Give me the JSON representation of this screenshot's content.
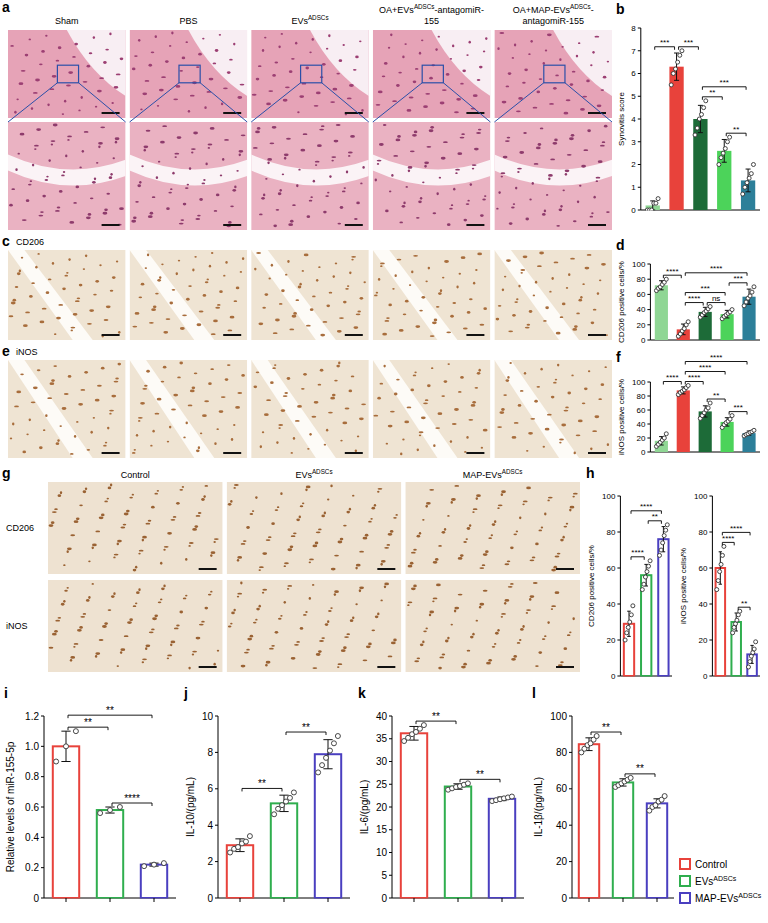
{
  "images": {
    "a": {
      "letter": "a",
      "columns": [
        [
          {
            "text": "Sham"
          }
        ],
        [
          {
            "text": "PBS"
          }
        ],
        [
          {
            "text": "EVs"
          },
          {
            "sup": "ADSCs"
          }
        ],
        [
          {
            "text": "OA+EVs"
          },
          {
            "sup": "ADSCs"
          },
          {
            "text": "-antagomiR-155"
          }
        ],
        [
          {
            "text": "OA+MAP-EVs"
          },
          {
            "sup": "ADSCs"
          },
          {
            "text": "-antagomiR-155"
          }
        ]
      ]
    },
    "c": {
      "letter": "c",
      "title": "CD206"
    },
    "e": {
      "letter": "e",
      "title": "iNOS"
    },
    "g": {
      "letter": "g",
      "columns": [
        [
          {
            "text": "Control"
          }
        ],
        [
          {
            "text": "EVs"
          },
          {
            "sup": "ADSCs"
          }
        ],
        [
          {
            "text": "MAP-EVs"
          },
          {
            "sup": "ADSCs"
          }
        ]
      ],
      "rows": [
        "CD206",
        "iNOS"
      ]
    }
  },
  "chart_data": [
    {
      "panel": "b",
      "type": "bar",
      "ylabel": "Synovitis score",
      "categories": [
        null,
        null,
        null,
        null,
        null
      ],
      "values": [
        0.2,
        6.3,
        4.0,
        2.6,
        1.3
      ],
      "errors": [
        0.2,
        0.6,
        0.6,
        0.5,
        0.5
      ],
      "points": [
        [
          0,
          0,
          0,
          0.3,
          0.3,
          0.5
        ],
        [
          5.5,
          6,
          6.2,
          6.5,
          6.8,
          7.0
        ],
        [
          3.3,
          3.6,
          4.0,
          4.2,
          4.5,
          4.8
        ],
        [
          2.0,
          2.3,
          2.5,
          2.7,
          3.0,
          3.2
        ],
        [
          0.7,
          1.0,
          1.2,
          1.4,
          1.6,
          2.0
        ]
      ],
      "colors": [
        "#8fd694",
        "#e8423b",
        "#1d6b38",
        "#4cd35a",
        "#2c7f99"
      ],
      "ylim": [
        0,
        8
      ],
      "yticks": [
        0,
        1,
        2,
        3,
        4,
        5,
        6,
        7,
        8
      ],
      "grid": false,
      "tick_labels": "y",
      "annotations": [
        {
          "label": "***",
          "pair": [
            0,
            1
          ]
        },
        {
          "label": "***",
          "pair": [
            1,
            2
          ]
        },
        {
          "label": "**",
          "pair": [
            2,
            3
          ]
        },
        {
          "label": "***",
          "pair": [
            2,
            4
          ]
        },
        {
          "label": "**",
          "pair": [
            3,
            4
          ]
        }
      ]
    },
    {
      "panel": "d",
      "type": "bar",
      "ylabel": "CD206 positive cells/%",
      "categories": [
        null,
        null,
        null,
        null,
        null
      ],
      "values": [
        72,
        14,
        37,
        34,
        57
      ],
      "errors": [
        6,
        7,
        6,
        5,
        10
      ],
      "points": [
        [
          65,
          68,
          70,
          73,
          76,
          80
        ],
        [
          5,
          8,
          12,
          15,
          20,
          24
        ],
        [
          30,
          33,
          36,
          38,
          41,
          44
        ],
        [
          28,
          31,
          33,
          35,
          37,
          40
        ],
        [
          45,
          50,
          55,
          58,
          63,
          70
        ]
      ],
      "colors": [
        "#8fd694",
        "#e8423b",
        "#1d6b38",
        "#4cd35a",
        "#2c7f99"
      ],
      "ylim": [
        0,
        100
      ],
      "yticks": [
        0,
        20,
        40,
        60,
        80,
        100
      ],
      "grid": false,
      "tick_labels": "y",
      "annotations": [
        {
          "label": "****",
          "pair": [
            0,
            1
          ]
        },
        {
          "label": "****",
          "pair": [
            1,
            2
          ]
        },
        {
          "label": "***",
          "pair": [
            1,
            3
          ]
        },
        {
          "label": "****",
          "pair": [
            1,
            4
          ]
        },
        {
          "label": "ns",
          "pair": [
            2,
            3
          ]
        },
        {
          "label": "***",
          "pair": [
            3,
            4
          ]
        }
      ]
    },
    {
      "panel": "f",
      "type": "bar",
      "ylabel": "iNOS positive cells/%",
      "categories": [
        null,
        null,
        null,
        null,
        null
      ],
      "values": [
        16,
        88,
        58,
        43,
        27
      ],
      "errors": [
        6,
        5,
        8,
        6,
        3
      ],
      "points": [
        [
          8,
          11,
          14,
          17,
          20,
          26
        ],
        [
          82,
          85,
          87,
          89,
          92,
          95
        ],
        [
          48,
          52,
          56,
          60,
          63,
          70
        ],
        [
          35,
          39,
          42,
          44,
          47,
          52
        ],
        [
          23,
          25,
          26,
          28,
          29,
          31
        ]
      ],
      "colors": [
        "#8fd694",
        "#e8423b",
        "#1d6b38",
        "#4cd35a",
        "#2c7f99"
      ],
      "ylim": [
        0,
        100
      ],
      "yticks": [
        0,
        20,
        40,
        60,
        80,
        100
      ],
      "grid": false,
      "tick_labels": "y",
      "annotations": [
        {
          "label": "****",
          "pair": [
            0,
            1
          ]
        },
        {
          "label": "****",
          "pair": [
            1,
            2
          ]
        },
        {
          "label": "****",
          "pair": [
            1,
            3
          ]
        },
        {
          "label": "****",
          "pair": [
            1,
            4
          ]
        },
        {
          "label": "**",
          "pair": [
            2,
            3
          ]
        },
        {
          "label": "***",
          "pair": [
            3,
            4
          ]
        }
      ]
    },
    {
      "panel": "h",
      "type": "bar",
      "ylabel": "CD206 positive cells/%",
      "categories": [
        null,
        null,
        null
      ],
      "values": [
        29,
        56,
        76
      ],
      "errors": [
        7,
        6,
        7
      ],
      "points": [
        [
          20,
          24,
          27,
          30,
          34,
          39
        ],
        [
          48,
          51,
          55,
          58,
          61,
          64
        ],
        [
          67,
          70,
          74,
          78,
          81,
          84
        ]
      ],
      "colors": [
        "#e8423b",
        "#2fae4e",
        "#4a3fc0"
      ],
      "ylim": [
        0,
        100
      ],
      "yticks": [
        0,
        20,
        40,
        60,
        80,
        100
      ],
      "grid": false,
      "tick_labels": "y",
      "annotations": [
        {
          "label": "****",
          "pair": [
            0,
            1
          ]
        },
        {
          "label": "****",
          "pair": [
            0,
            2
          ]
        },
        {
          "label": "**",
          "pair": [
            1,
            2
          ]
        }
      ]
    },
    {
      "type": "bar",
      "ylabel": "iNOS positive cells/%",
      "categories": [
        null,
        null,
        null
      ],
      "values": [
        60,
        30,
        12
      ],
      "errors": [
        9,
        5,
        5
      ],
      "points": [
        [
          48,
          53,
          58,
          62,
          67,
          72
        ],
        [
          24,
          27,
          29,
          31,
          34,
          36
        ],
        [
          5,
          8,
          11,
          13,
          15,
          19
        ]
      ],
      "colors": [
        "#e8423b",
        "#2fae4e",
        "#4a3fc0"
      ],
      "ylim": [
        0,
        100
      ],
      "yticks": [
        0,
        20,
        40,
        60,
        80,
        100
      ],
      "grid": false,
      "tick_labels": "y",
      "annotations": [
        {
          "label": "****",
          "pair": [
            0,
            1
          ]
        },
        {
          "label": "****",
          "pair": [
            0,
            2
          ]
        },
        {
          "label": "**",
          "pair": [
            1,
            2
          ]
        }
      ]
    },
    {
      "panel": "i",
      "type": "bar",
      "ylabel": "Relative levels of miR-155-5p",
      "categories": [
        null,
        null,
        null
      ],
      "values": [
        1.0,
        0.58,
        0.22
      ],
      "errors": [
        0.1,
        0.02,
        0.01
      ],
      "points": [
        [
          0.9,
          1.0,
          1.1
        ],
        [
          0.56,
          0.58,
          0.6
        ],
        [
          0.21,
          0.22,
          0.23
        ]
      ],
      "colors": [
        "#e8423b",
        "#2fae4e",
        "#4a3fc0"
      ],
      "ylim": [
        0,
        1.2
      ],
      "yticks": [
        0,
        0.2,
        0.4,
        0.6,
        0.8,
        {
          "value": 1,
          "label": "1.0"
        },
        1.2
      ],
      "grid": false,
      "tick_labels": "y",
      "annotations": [
        {
          "label": "**",
          "pair": [
            0,
            1
          ]
        },
        {
          "label": "**",
          "pair": [
            0,
            2
          ]
        },
        {
          "label": "****",
          "pair": [
            1,
            2
          ]
        }
      ]
    },
    {
      "panel": "j",
      "type": "bar",
      "ylabel": "IL-10/(pg/mL)",
      "categories": [
        null,
        null,
        null
      ],
      "values": [
        2.9,
        5.2,
        7.9
      ],
      "errors": [
        0.35,
        0.45,
        0.8
      ],
      "points": [
        [
          2.5,
          2.7,
          2.8,
          3.0,
          3.1,
          3.4
        ],
        [
          4.6,
          4.9,
          5.1,
          5.3,
          5.5,
          5.8
        ],
        [
          6.9,
          7.3,
          7.7,
          8.1,
          8.5,
          8.9
        ]
      ],
      "colors": [
        "#e8423b",
        "#2fae4e",
        "#4a3fc0"
      ],
      "ylim": [
        0,
        10
      ],
      "yticks": [
        0,
        2,
        4,
        6,
        8,
        10
      ],
      "grid": false,
      "tick_labels": "y",
      "annotations": [
        {
          "label": "**",
          "pair": [
            0,
            1
          ]
        },
        {
          "label": "**",
          "pair": [
            1,
            2
          ]
        }
      ]
    },
    {
      "panel": "k",
      "type": "bar",
      "ylabel": "IL-6/(pg/mL)",
      "categories": [
        null,
        null,
        null
      ],
      "values": [
        36.2,
        24.5,
        21.8
      ],
      "errors": [
        1.5,
        0.6,
        0.4
      ],
      "points": [
        [
          34.5,
          35.2,
          36,
          36.5,
          37.2,
          38
        ],
        [
          23.8,
          24.1,
          24.4,
          24.6,
          24.9,
          25.2
        ],
        [
          21.3,
          21.5,
          21.7,
          21.9,
          22.1,
          22.3
        ]
      ],
      "colors": [
        "#e8423b",
        "#2fae4e",
        "#4a3fc0"
      ],
      "ylim": [
        0,
        40
      ],
      "yticks": [
        0,
        5,
        10,
        15,
        20,
        25,
        30,
        35,
        40
      ],
      "grid": false,
      "tick_labels": "y",
      "annotations": [
        {
          "label": "**",
          "pair": [
            0,
            1
          ]
        },
        {
          "label": "**",
          "pair": [
            1,
            2
          ]
        }
      ]
    },
    {
      "panel": "l",
      "type": "bar",
      "ylabel": "IL-1β/(pg/mL)",
      "categories": [
        null,
        null,
        null
      ],
      "values": [
        84.5,
        63.5,
        52
      ],
      "errors": [
        3.5,
        2,
        2.5
      ],
      "points": [
        [
          80,
          82,
          84,
          85,
          87,
          89
        ],
        [
          61,
          62,
          63,
          64,
          65,
          66
        ],
        [
          48,
          50,
          51,
          53,
          54,
          56
        ]
      ],
      "colors": [
        "#e8423b",
        "#2fae4e",
        "#4a3fc0"
      ],
      "ylim": [
        0,
        100
      ],
      "yticks": [
        0,
        20,
        40,
        60,
        80,
        100
      ],
      "grid": false,
      "tick_labels": "y",
      "annotations": [
        {
          "label": "**",
          "pair": [
            0,
            1
          ]
        },
        {
          "label": "**",
          "pair": [
            1,
            2
          ]
        }
      ]
    }
  ],
  "group_legend": {
    "entries": [
      {
        "name": [
          {
            "text": "Control"
          }
        ],
        "color": "#e8423b"
      },
      {
        "name": [
          {
            "text": "EVs"
          },
          {
            "sup": "ADSCs"
          }
        ],
        "color": "#2fae4e"
      },
      {
        "name": [
          {
            "text": "MAP-EVs"
          },
          {
            "sup": "ADSCs"
          }
        ],
        "color": "#4a3fc0"
      }
    ]
  }
}
